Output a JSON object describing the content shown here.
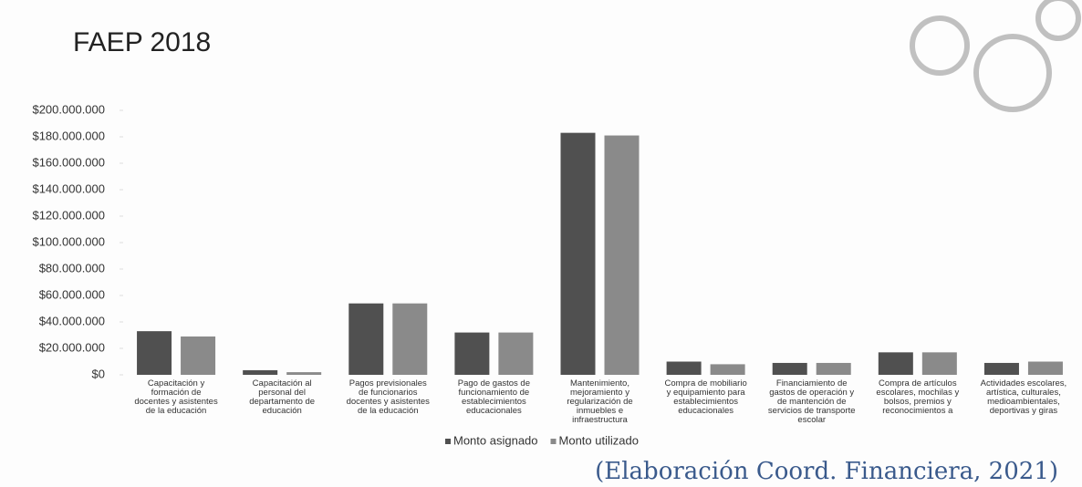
{
  "chart_data": {
    "type": "bar",
    "title": "FAEP 2018",
    "source": "(Elaboración Coord. Financiera, 2021)",
    "categories": [
      "Capacitación y formación de docentes y asistentes de la educación",
      "Capacitación al personal del departamento de educación",
      "Pagos previsionales de funcionarios docentes y asistentes de la educación",
      "Pago de gastos de funcionamiento de establecimientos educacionales",
      "Mantenimiento, mejoramiento y regularización de inmuebles e infraestructura",
      "Compra de mobiliario y equipamiento para establecimientos educacionales",
      "Financiamiento de gastos de operación y de mantención de servicios de transporte escolar",
      "Compra de artículos escolares, mochilas y bolsos, premios y reconocimientos a",
      "Actividades escolares, artística, culturales, medioambientales, deportivas y giras"
    ],
    "series": [
      {
        "name": "Monto asignado",
        "color": "#505050",
        "values": [
          33000000,
          3500000,
          54000000,
          32000000,
          183000000,
          10000000,
          9000000,
          17000000,
          9000000
        ]
      },
      {
        "name": "Monto utilizado",
        "color": "#8a8a8a",
        "values": [
          29000000,
          2000000,
          54000000,
          32000000,
          181000000,
          8000000,
          9000000,
          17000000,
          10000000
        ]
      }
    ],
    "ylim": [
      0,
      200000000
    ],
    "yticks": [
      {
        "value": 0,
        "label": "$0"
      },
      {
        "value": 20000000,
        "label": "$20.000.000"
      },
      {
        "value": 40000000,
        "label": "$40.000.000"
      },
      {
        "value": 60000000,
        "label": "$60.000.000"
      },
      {
        "value": 80000000,
        "label": "$80.000.000"
      },
      {
        "value": 100000000,
        "label": "$100.000.000"
      },
      {
        "value": 120000000,
        "label": "$120.000.000"
      },
      {
        "value": 140000000,
        "label": "$140.000.000"
      },
      {
        "value": 160000000,
        "label": "$160.000.000"
      },
      {
        "value": 180000000,
        "label": "$180.000.000"
      },
      {
        "value": 200000000,
        "label": "$200.000.000"
      }
    ],
    "legend": "bottom"
  }
}
